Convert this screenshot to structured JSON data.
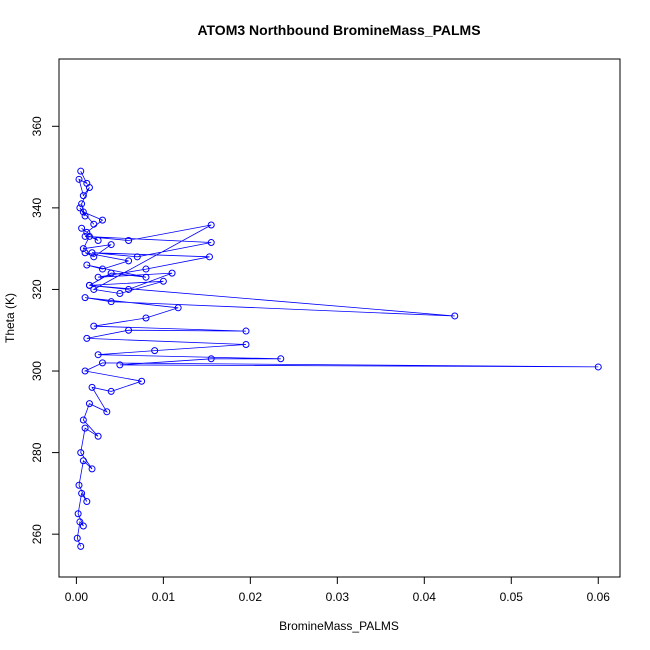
{
  "chart_data": {
    "type": "line",
    "title": "ATOM3 Northbound BromineMass_PALMS",
    "xlabel": "BromineMass_PALMS",
    "ylabel": "Theta (K)",
    "xlim": [
      -0.002,
      0.0625
    ],
    "ylim": [
      249.5,
      376.5
    ],
    "xticks": [
      0.0,
      0.01,
      0.02,
      0.03,
      0.04,
      0.05,
      0.06
    ],
    "xtick_labels": [
      "0.00",
      "0.01",
      "0.02",
      "0.03",
      "0.04",
      "0.05",
      "0.06"
    ],
    "yticks": [
      260,
      280,
      300,
      320,
      340,
      360
    ],
    "ytick_labels": [
      "260",
      "280",
      "300",
      "320",
      "340",
      "360"
    ],
    "series_color": "#0000ff",
    "marker": "open-circle",
    "grid": false,
    "series": [
      {
        "x": [
          0.0005,
          0.0012,
          0.0003,
          0.0008,
          0.0015,
          0.0006,
          0.001,
          0.0004,
          0.002,
          0.0008,
          0.003,
          0.0012,
          0.0006,
          0.0025,
          0.0015,
          0.0008,
          0.004,
          0.002,
          0.001,
          0.006,
          0.003,
          0.0012,
          0.008,
          0.004,
          0.0015,
          0.01,
          0.005,
          0.002,
          0.0155,
          0.006,
          0.001,
          0.0155,
          0.007,
          0.0018,
          0.0153,
          0.008,
          0.0025,
          0.011,
          0.006,
          0.0015,
          0.0435,
          0.004,
          0.001,
          0.0117,
          0.008,
          0.002,
          0.0195,
          0.006,
          0.0012,
          0.0195,
          0.009,
          0.0025,
          0.0235,
          0.0155,
          0.005,
          0.06,
          0.003,
          0.001,
          0.0075,
          0.004,
          0.0018,
          0.0035,
          0.0015,
          0.0008,
          0.0025,
          0.001,
          0.0005,
          0.0018,
          0.0008,
          0.0003,
          0.0012,
          0.0006,
          0.0002,
          0.0008,
          0.0004,
          0.0001,
          0.0005
        ],
        "y": [
          349,
          346,
          347,
          343,
          345,
          341,
          338,
          340,
          336,
          339,
          337,
          334,
          335,
          332,
          333,
          330,
          331,
          328,
          329,
          327,
          325,
          326,
          323,
          324,
          321,
          322,
          319,
          320,
          335.8,
          332,
          333,
          331.5,
          328,
          329,
          328,
          325,
          323,
          324,
          320,
          321,
          313.5,
          317,
          318,
          315.5,
          313,
          311,
          309.8,
          310,
          308,
          306.5,
          305,
          304,
          303,
          303,
          301.5,
          301,
          302,
          300,
          297.5,
          295,
          296,
          290,
          292,
          288,
          284,
          286,
          280,
          276,
          278,
          272,
          268,
          270,
          265,
          262,
          263,
          259,
          257
        ]
      }
    ]
  }
}
